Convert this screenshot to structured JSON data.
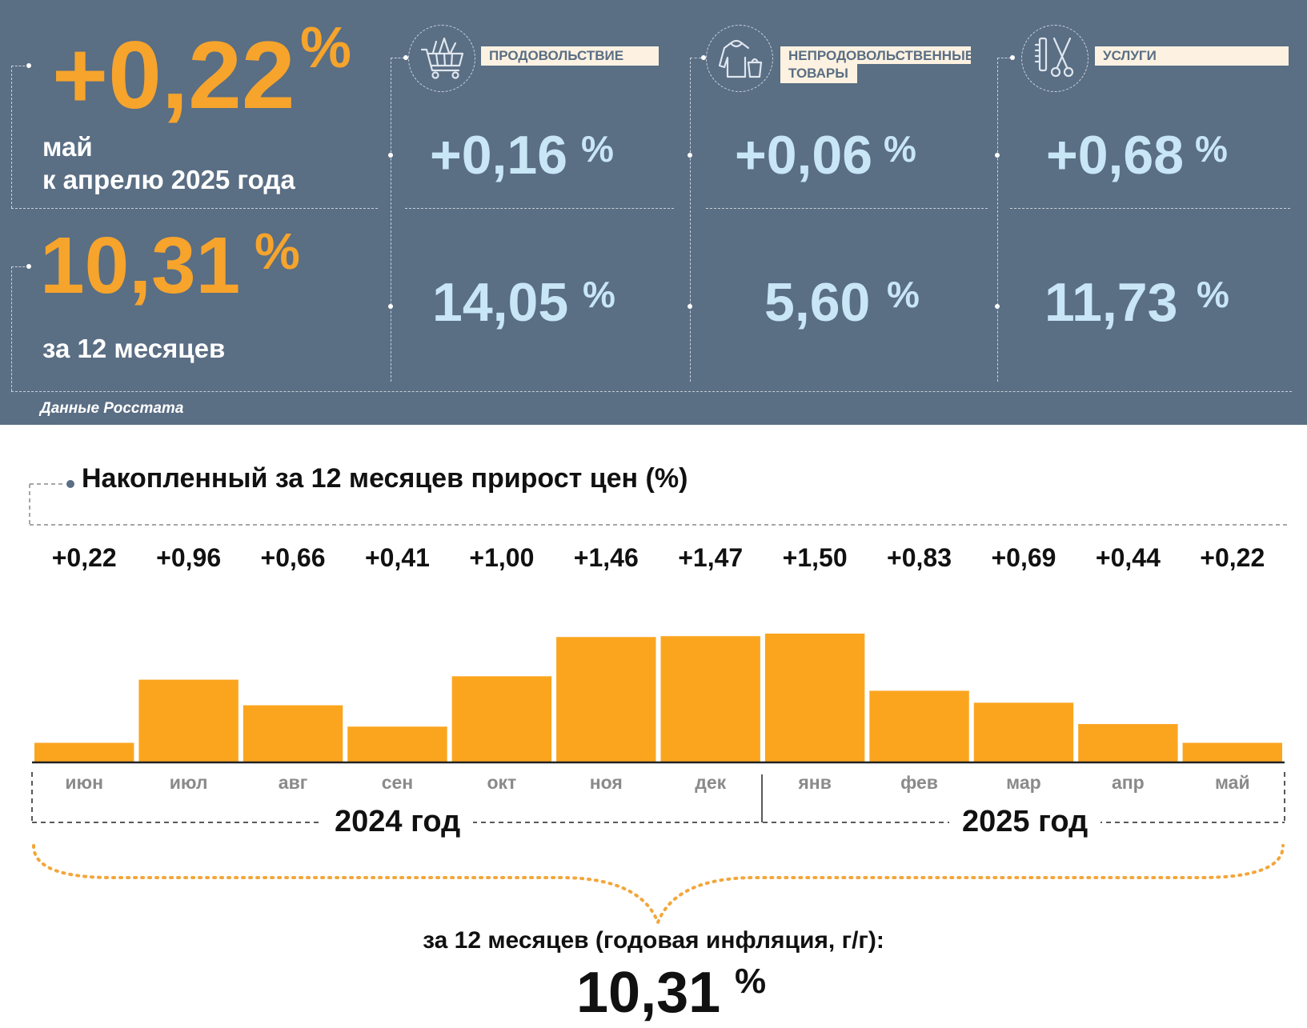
{
  "summary": {
    "monthly": {
      "value": "+0,22",
      "unit": "%",
      "line1": "май",
      "line2": "к апрелю 2025 года"
    },
    "annual": {
      "value": "10,31",
      "unit": "%",
      "label": "за 12 месяцев"
    },
    "source": "Данные Росстата"
  },
  "categories": [
    {
      "label": "ПРОДОВОЛЬСТВИЕ",
      "icon": "shopping-cart-icon",
      "monthly": "+0,16",
      "annual": "14,05",
      "unit": "%"
    },
    {
      "label": "НЕПРОДОВОЛЬСТВЕННЫЕ ТОВАРЫ",
      "label_line1": "НЕПРОДОВОЛЬСТВЕННЫЕ",
      "label_line2": "ТОВАРЫ",
      "icon": "clothing-icon",
      "monthly": "+0,06",
      "annual": "5,60",
      "unit": "%"
    },
    {
      "label": "УСЛУГИ",
      "icon": "scissors-comb-icon",
      "monthly": "+0,68",
      "annual": "11,73",
      "unit": "%"
    }
  ],
  "chart_data": {
    "type": "bar",
    "title": "Накопленный за 12 месяцев прирост цен (%)",
    "categories": [
      "июн",
      "июл",
      "авг",
      "сен",
      "окт",
      "ноя",
      "дек",
      "янв",
      "фев",
      "мар",
      "апр",
      "май"
    ],
    "values": [
      0.22,
      0.96,
      0.66,
      0.41,
      1.0,
      1.46,
      1.47,
      1.5,
      0.83,
      0.69,
      0.44,
      0.22
    ],
    "value_labels": [
      "+0,22",
      "+0,96",
      "+0,66",
      "+0,41",
      "+1,00",
      "+1,46",
      "+1,47",
      "+1,50",
      "+0,83",
      "+0,69",
      "+0,44",
      "+0,22"
    ],
    "year_groups": [
      {
        "label": "2024 год",
        "months": [
          "июн",
          "июл",
          "авг",
          "сен",
          "окт",
          "ноя",
          "дек"
        ]
      },
      {
        "label": "2025 год",
        "months": [
          "янв",
          "фев",
          "мар",
          "апр",
          "май"
        ]
      }
    ],
    "ylim": [
      0,
      1.5
    ],
    "grid": false,
    "bar_color": "#fba51f"
  },
  "annual_total": {
    "caption": "за 12 месяцев (годовая инфляция, г/г):",
    "value": "10,31",
    "unit": "%"
  },
  "colors": {
    "panel_bg": "#5a6e84",
    "accent_orange": "#f6a42c",
    "value_blue": "#c8e6f6",
    "label_bg": "#fdf2e1"
  }
}
